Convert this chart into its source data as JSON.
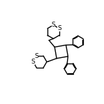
{
  "bg_color": "#ffffff",
  "line_color": "#000000",
  "lw": 1.0,
  "figsize": [
    1.49,
    1.49
  ],
  "dpi": 100,
  "xlim": [
    0,
    10
  ],
  "ylim": [
    0,
    10
  ]
}
